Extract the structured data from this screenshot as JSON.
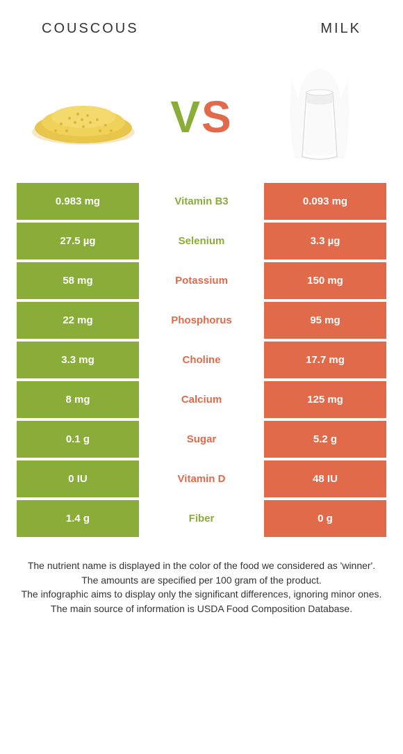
{
  "header": {
    "left": "COUSCOUS",
    "right": "MILK"
  },
  "vs": {
    "v": "V",
    "s": "S"
  },
  "colors": {
    "left_bg": "#8aad3a",
    "right_bg": "#e06a4a",
    "left_text": "#8aad3a",
    "right_text": "#e06a4a",
    "row_gap": "#ffffff"
  },
  "rows": [
    {
      "left": "0.983 mg",
      "label": "Vitamin B3",
      "right": "0.093 mg",
      "winner": "left"
    },
    {
      "left": "27.5 µg",
      "label": "Selenium",
      "right": "3.3 µg",
      "winner": "left"
    },
    {
      "left": "58 mg",
      "label": "Potassium",
      "right": "150 mg",
      "winner": "right"
    },
    {
      "left": "22 mg",
      "label": "Phosphorus",
      "right": "95 mg",
      "winner": "right"
    },
    {
      "left": "3.3 mg",
      "label": "Choline",
      "right": "17.7 mg",
      "winner": "right"
    },
    {
      "left": "8 mg",
      "label": "Calcium",
      "right": "125 mg",
      "winner": "right"
    },
    {
      "left": "0.1 g",
      "label": "Sugar",
      "right": "5.2 g",
      "winner": "right"
    },
    {
      "left": "0 IU",
      "label": "Vitamin D",
      "right": "48 IU",
      "winner": "right"
    },
    {
      "left": "1.4 g",
      "label": "Fiber",
      "right": "0 g",
      "winner": "left"
    }
  ],
  "footer": [
    "The nutrient name is displayed in the color of the food we considered as 'winner'.",
    "The amounts are specified per 100 gram of the product.",
    "The infographic aims to display only the significant differences, ignoring minor ones.",
    "The main source of information is USDA Food Composition Database."
  ]
}
